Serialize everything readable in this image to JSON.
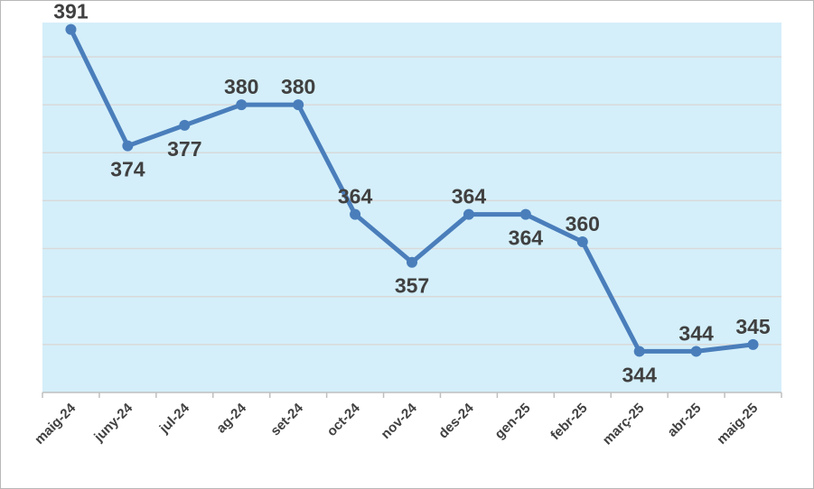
{
  "chart_data": {
    "type": "line",
    "categories": [
      "maig-24",
      "juny-24",
      "jul-24",
      "ag-24",
      "set-24",
      "oct-24",
      "nov-24",
      "des-24",
      "gen-25",
      "febr-25",
      "març-25",
      "abr-25",
      "maig-25"
    ],
    "series": [
      {
        "values": [
          391,
          374,
          377,
          380,
          380,
          364,
          357,
          364,
          364,
          360,
          344,
          344,
          345
        ]
      }
    ],
    "data_labels": [
      "391",
      "374",
      "377",
      "380",
      "380",
      "364",
      "357",
      "364",
      "364",
      "360",
      "344",
      "344",
      "345"
    ],
    "label_positions": [
      "above",
      "below",
      "below",
      "above",
      "above",
      "above",
      "below",
      "above",
      "below",
      "above",
      "below",
      "above",
      "above"
    ],
    "title": "",
    "xlabel": "",
    "ylabel": "",
    "ylim": [
      338,
      392
    ],
    "gridlines_at": [
      345,
      352,
      359,
      366,
      373,
      380,
      387
    ],
    "grid": true,
    "legend": "none",
    "colors": {
      "line": "#4a7ebb",
      "plot_background": "#d4effa",
      "gridline": "#d9d9d9",
      "axis": "#bfbfbf",
      "text": "#404040"
    }
  }
}
